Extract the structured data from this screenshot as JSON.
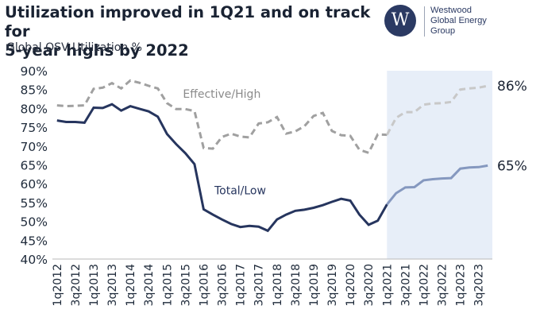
{
  "title_lines": [
    "Utilization improved in 1Q21 and on track for",
    "5-year highs by 2022"
  ],
  "subtitle": "Global OSV Utilization %",
  "logo": {
    "mark": "W",
    "lines": [
      "Westwood",
      "Global Energy",
      "Group"
    ]
  },
  "colors": {
    "total": "#26355e",
    "total_forecast": "#8598bf",
    "effective": "#a0a0a0",
    "effective_forecast": "#c8c8c8",
    "forecast_band": "#e7eef8",
    "text": "#1e2a3a"
  },
  "chart_data": {
    "type": "line",
    "ylim": [
      40,
      90
    ],
    "yticks": [
      "40%",
      "45%",
      "50%",
      "55%",
      "60%",
      "65%",
      "70%",
      "75%",
      "80%",
      "85%",
      "90%"
    ],
    "x": [
      "1q2012",
      "2q2012",
      "3q2012",
      "4q2012",
      "1q2013",
      "2q2013",
      "3q2013",
      "4q2013",
      "1q2014",
      "2q2014",
      "3q2014",
      "4q2014",
      "1q2015",
      "2q2015",
      "3q2015",
      "4q2015",
      "1q2016",
      "2q2016",
      "3q2016",
      "4q2016",
      "1q2017",
      "2q2017",
      "3q2017",
      "4q2017",
      "1q2018",
      "2q2018",
      "3q2018",
      "4q2018",
      "1q2019",
      "2q2019",
      "3q2019",
      "4q2019",
      "1q2020",
      "2q2020",
      "3q2020",
      "4q2020",
      "1q2021",
      "2q2021",
      "3q2021",
      "4q2021",
      "1q2022",
      "2q2022",
      "3q2022",
      "4q2022",
      "1q2023",
      "2q2023",
      "3q2023",
      "4q2023"
    ],
    "xtick_labels": [
      "1q2012",
      "3q2012",
      "1q2013",
      "3q2013",
      "1q2014",
      "3q2014",
      "1q2015",
      "3q2015",
      "1q2016",
      "3q2016",
      "1q2017",
      "3q2017",
      "1q2018",
      "3q2018",
      "1q2019",
      "3q2019",
      "1q2020",
      "3q2020",
      "1q2021",
      "3q2021",
      "1q2022",
      "3q2022",
      "1q2023",
      "3q2023"
    ],
    "forecast_start": "1q2021",
    "series": [
      {
        "name": "Effective/High",
        "style": "dashed",
        "values": [
          80.8,
          80.6,
          80.7,
          80.8,
          85.2,
          85.5,
          86.7,
          85.3,
          87.4,
          86.8,
          86.0,
          85.3,
          81.4,
          79.8,
          79.8,
          79.3,
          69.5,
          69.3,
          72.4,
          73.3,
          72.5,
          72.3,
          76.0,
          76.3,
          77.7,
          73.3,
          73.9,
          75.3,
          78.0,
          78.8,
          74.0,
          72.9,
          72.7,
          69.0,
          68.2,
          73.1,
          73.0,
          77.5,
          79.0,
          79.0,
          81.0,
          81.3,
          81.4,
          81.7,
          85.0,
          85.3,
          85.5,
          86.0
        ]
      },
      {
        "name": "Total/Low",
        "style": "solid",
        "values": [
          76.8,
          76.4,
          76.4,
          76.2,
          80.2,
          80.1,
          81.1,
          79.4,
          80.6,
          79.9,
          79.2,
          77.8,
          73.2,
          70.5,
          68.1,
          65.2,
          53.2,
          51.8,
          50.5,
          49.3,
          48.5,
          48.8,
          48.6,
          47.5,
          50.5,
          51.8,
          52.8,
          53.1,
          53.6,
          54.3,
          55.2,
          56.0,
          55.5,
          51.8,
          49.1,
          50.2,
          54.5,
          57.5,
          59.0,
          59.1,
          60.9,
          61.2,
          61.4,
          61.5,
          64.0,
          64.3,
          64.4,
          64.8
        ]
      }
    ],
    "annotations": [
      {
        "text": "Effective/High",
        "series": "Effective/High"
      },
      {
        "text": "Total/Low",
        "series": "Total/Low"
      },
      {
        "text": "86%",
        "series": "Effective/High"
      },
      {
        "text": "65%",
        "series": "Total/Low"
      }
    ],
    "grid": false,
    "legend": "none"
  }
}
